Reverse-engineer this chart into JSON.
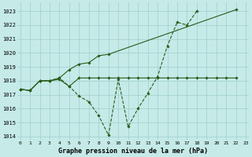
{
  "title": "Graphe pression niveau de la mer (hPa)",
  "bg_color": "#c5eae8",
  "grid_color": "#9ecece",
  "line_color": "#2a5c1a",
  "xlim": [
    -0.3,
    23.3
  ],
  "ylim": [
    1013.75,
    1023.6
  ],
  "yticks": [
    1014,
    1015,
    1016,
    1017,
    1018,
    1019,
    1020,
    1021,
    1022,
    1023
  ],
  "xtick_labels": [
    "0",
    "1",
    "2",
    "3",
    "4",
    "5",
    "6",
    "7",
    "8",
    "9",
    "10",
    "11",
    "12",
    "13",
    "14",
    "15",
    "16",
    "17",
    "18",
    "19",
    "20",
    "21",
    "22",
    "23"
  ],
  "s1_x": [
    0,
    1,
    2,
    3,
    4,
    5,
    6,
    7,
    8,
    9,
    10,
    11,
    12,
    13,
    14,
    15,
    16,
    17,
    18,
    19,
    20,
    21,
    22
  ],
  "s1_y": [
    1017.4,
    1017.3,
    1018.0,
    1018.0,
    1018.1,
    1017.6,
    1018.2,
    1018.2,
    1018.2,
    1018.2,
    1018.2,
    1018.2,
    1018.2,
    1018.2,
    1018.2,
    1018.2,
    1018.2,
    1018.2,
    1018.2,
    1018.2,
    1018.2,
    1018.2,
    1018.2
  ],
  "s2_x": [
    0,
    1,
    2,
    3,
    4,
    5,
    6,
    7,
    8,
    9,
    10,
    11,
    12,
    13,
    14,
    15,
    16,
    17,
    18,
    19,
    20,
    21,
    22
  ],
  "s2_y": [
    1017.4,
    1017.3,
    1018.0,
    1018.0,
    1018.2,
    1017.6,
    1016.9,
    1016.5,
    1015.5,
    1014.1,
    1018.1,
    1014.7,
    1016.0,
    1017.1,
    1018.3,
    1020.5,
    1022.2,
    1022.0,
    1023.0,
    null,
    null,
    null,
    null
  ],
  "s3_x": [
    0,
    1,
    2,
    3,
    4,
    5,
    6,
    7,
    8,
    9,
    22
  ],
  "s3_y": [
    1017.4,
    1017.3,
    1018.0,
    1018.0,
    1018.2,
    1018.8,
    1019.2,
    1019.3,
    1019.8,
    1019.9,
    1023.1
  ],
  "marker": "D",
  "markersize": 1.8,
  "linewidth": 0.8
}
